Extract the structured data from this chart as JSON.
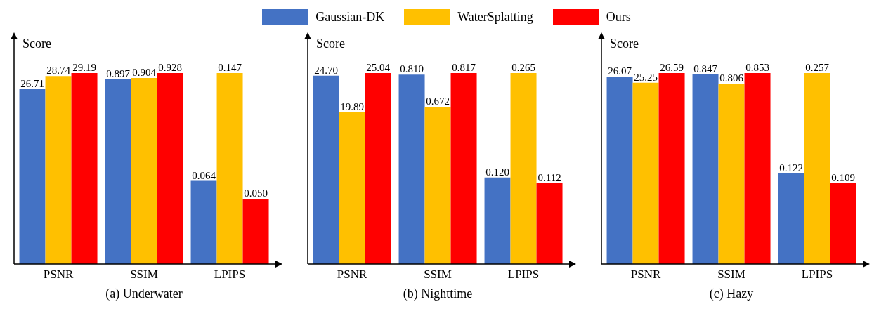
{
  "chart_data": [
    {
      "type": "bar",
      "categories": [
        "PSNR"
      ],
      "ylabel": "Score",
      "legend": "top",
      "series": [
        {
          "name": "Gaussian-DK",
          "color": "#4472c4",
          "values": [
            26.71
          ],
          "value_labels": [
            "26.71"
          ]
        },
        {
          "name": "WaterSplatting",
          "color": "#ffc000",
          "values": [
            28.74
          ],
          "value_labels": [
            "28.74"
          ]
        },
        {
          "name": "Ours",
          "color": "#ff0000",
          "values": [
            29.19
          ],
          "value_labels": [
            "29.19"
          ]
        }
      ]
    },
    {
      "type": "bar",
      "categories": [
        "SSIM"
      ],
      "xlabel": "(a) Underwater",
      "series": [
        {
          "name": "Gaussian-DK",
          "color": "#4472c4",
          "values": [
            0.897
          ],
          "value_labels": [
            "0.897"
          ]
        },
        {
          "name": "WaterSplatting",
          "color": "#ffc000",
          "values": [
            0.904
          ],
          "value_labels": [
            "0.904"
          ]
        },
        {
          "name": "Ours",
          "color": "#ff0000",
          "values": [
            0.928
          ],
          "value_labels": [
            "0.928"
          ]
        }
      ]
    },
    {
      "type": "bar",
      "categories": [
        "LPIPS"
      ],
      "series": [
        {
          "name": "Gaussian-DK",
          "color": "#4472c4",
          "values": [
            0.064
          ],
          "value_labels": [
            "0.064"
          ]
        },
        {
          "name": "WaterSplatting",
          "color": "#ffc000",
          "values": [
            0.147
          ],
          "value_labels": [
            "0.147"
          ]
        },
        {
          "name": "Ours",
          "color": "#ff0000",
          "values": [
            0.05
          ],
          "value_labels": [
            "0.050"
          ]
        }
      ]
    },
    {
      "type": "bar",
      "categories": [
        "PSNR"
      ],
      "ylabel": "Score",
      "series": [
        {
          "name": "Gaussian-DK",
          "color": "#4472c4",
          "values": [
            24.7
          ],
          "value_labels": [
            "24.70"
          ]
        },
        {
          "name": "WaterSplatting",
          "color": "#ffc000",
          "values": [
            19.89
          ],
          "value_labels": [
            "19.89"
          ]
        },
        {
          "name": "Ours",
          "color": "#ff0000",
          "values": [
            25.04
          ],
          "value_labels": [
            "25.04"
          ]
        }
      ]
    },
    {
      "type": "bar",
      "categories": [
        "SSIM"
      ],
      "xlabel": "(b) Nighttime",
      "series": [
        {
          "name": "Gaussian-DK",
          "color": "#4472c4",
          "values": [
            0.81
          ],
          "value_labels": [
            "0.810"
          ]
        },
        {
          "name": "WaterSplatting",
          "color": "#ffc000",
          "values": [
            0.672
          ],
          "value_labels": [
            "0.672"
          ]
        },
        {
          "name": "Ours",
          "color": "#ff0000",
          "values": [
            0.817
          ],
          "value_labels": [
            "0.817"
          ]
        }
      ]
    },
    {
      "type": "bar",
      "categories": [
        "LPIPS"
      ],
      "series": [
        {
          "name": "Gaussian-DK",
          "color": "#4472c4",
          "values": [
            0.12
          ],
          "value_labels": [
            "0.120"
          ]
        },
        {
          "name": "WaterSplatting",
          "color": "#ffc000",
          "values": [
            0.265
          ],
          "value_labels": [
            "0.265"
          ]
        },
        {
          "name": "Ours",
          "color": "#ff0000",
          "values": [
            0.112
          ],
          "value_labels": [
            "0.112"
          ]
        }
      ]
    },
    {
      "type": "bar",
      "categories": [
        "PSNR"
      ],
      "ylabel": "Score",
      "series": [
        {
          "name": "Gaussian-DK",
          "color": "#4472c4",
          "values": [
            26.07
          ],
          "value_labels": [
            "26.07"
          ]
        },
        {
          "name": "WaterSplatting",
          "color": "#ffc000",
          "values": [
            25.25
          ],
          "value_labels": [
            "25.25"
          ]
        },
        {
          "name": "Ours",
          "color": "#ff0000",
          "values": [
            26.59
          ],
          "value_labels": [
            "26.59"
          ]
        }
      ]
    },
    {
      "type": "bar",
      "categories": [
        "SSIM"
      ],
      "xlabel": "(c) Hazy",
      "series": [
        {
          "name": "Gaussian-DK",
          "color": "#4472c4",
          "values": [
            0.847
          ],
          "value_labels": [
            "0.847"
          ]
        },
        {
          "name": "WaterSplatting",
          "color": "#ffc000",
          "values": [
            0.806
          ],
          "value_labels": [
            "0.806"
          ]
        },
        {
          "name": "Ours",
          "color": "#ff0000",
          "values": [
            0.853
          ],
          "value_labels": [
            "0.853"
          ]
        }
      ]
    },
    {
      "type": "bar",
      "categories": [
        "LPIPS"
      ],
      "series": [
        {
          "name": "Gaussian-DK",
          "color": "#4472c4",
          "values": [
            0.122
          ],
          "value_labels": [
            "0.122"
          ]
        },
        {
          "name": "WaterSplatting",
          "color": "#ffc000",
          "values": [
            0.257
          ],
          "value_labels": [
            "0.257"
          ]
        },
        {
          "name": "Ours",
          "color": "#ff0000",
          "values": [
            0.109
          ],
          "value_labels": [
            "0.109"
          ]
        }
      ]
    }
  ]
}
